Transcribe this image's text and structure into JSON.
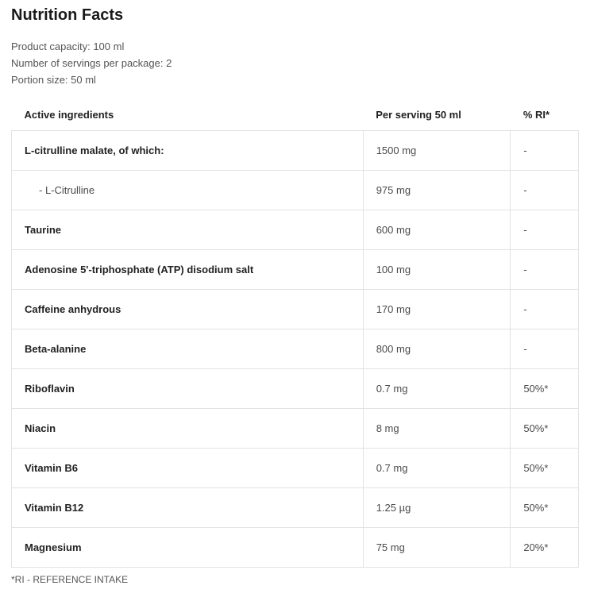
{
  "title": "Nutrition Facts",
  "meta_lines": {
    "l0": "Product capacity: 100 ml",
    "l1": "Number of servings per package: 2",
    "l2": "Portion size: 50 ml"
  },
  "table": {
    "headers": {
      "ingredient": "Active ingredients",
      "per_serving": "Per serving 50 ml",
      "ri": "% RI*"
    },
    "rows": [
      {
        "ingredient": "L-citrulline malate, of which:",
        "per_serving": "1500 mg",
        "ri": "-",
        "sub": false
      },
      {
        "ingredient": "L-Citrulline",
        "per_serving": "975 mg",
        "ri": "-",
        "sub": true
      },
      {
        "ingredient": "Taurine",
        "per_serving": "600 mg",
        "ri": "-",
        "sub": false
      },
      {
        "ingredient": "Adenosine 5'-triphosphate (ATP) disodium salt",
        "per_serving": "100 mg",
        "ri": "-",
        "sub": false
      },
      {
        "ingredient": "Caffeine anhydrous",
        "per_serving": "170 mg",
        "ri": "-",
        "sub": false
      },
      {
        "ingredient": "Beta-alanine",
        "per_serving": "800 mg",
        "ri": "-",
        "sub": false
      },
      {
        "ingredient": "Riboflavin",
        "per_serving": "0.7 mg",
        "ri": "50%*",
        "sub": false
      },
      {
        "ingredient": "Niacin",
        "per_serving": "8 mg",
        "ri": "50%*",
        "sub": false
      },
      {
        "ingredient": "Vitamin B6",
        "per_serving": "0.7 mg",
        "ri": "50%*",
        "sub": false
      },
      {
        "ingredient": "Vitamin B12",
        "per_serving": "1.25 µg",
        "ri": "50%*",
        "sub": false
      },
      {
        "ingredient": "Magnesium",
        "per_serving": "75 mg",
        "ri": "20%*",
        "sub": false
      }
    ]
  },
  "footnote": "*RI - REFERENCE INTAKE",
  "colors": {
    "border": "#e2e2e2",
    "text": "#2a2a2a",
    "muted": "#555555",
    "bg": "#ffffff"
  }
}
